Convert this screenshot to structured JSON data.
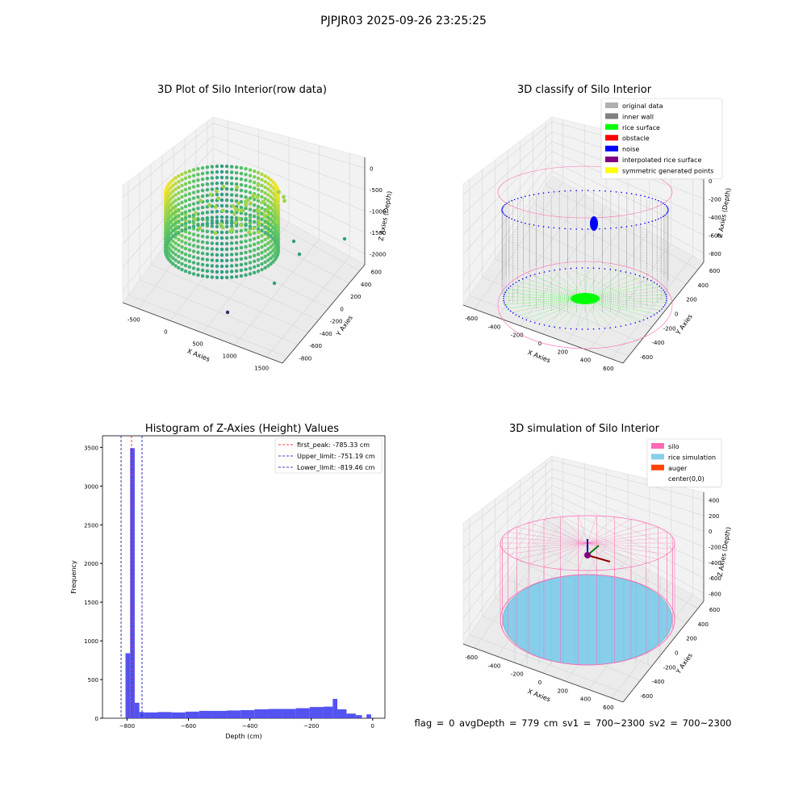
{
  "figure": {
    "suptitle": "PJPJR03 2025-09-26 23:25:25",
    "status_line": "flag = 0     avgDepth = 779 cm  sv1 = 700~2300  sv2 = 700~2300"
  },
  "colors": {
    "original": "#b0b0b0",
    "inner_wall": "#808080",
    "rice_surface": "#00ff00",
    "obstacle": "#ff0000",
    "noise": "#0000ff",
    "interpolated": "#800080",
    "symmetric": "#ffff00",
    "silo": "#ff69b4",
    "rice_sim": "#87ceeb",
    "auger": "#ff4500",
    "hist_bar": "#4040f0",
    "first_peak_line": "#ff0000",
    "limit_line": "#0000aa"
  },
  "chart_data": [
    {
      "type": "scatter",
      "title": "3D Plot of Silo Interior(row data)",
      "xlabel": "X Axies",
      "ylabel": "Y Axies",
      "zlabel": "Z Axies (Depth)",
      "xticks": [
        "-500",
        "0",
        "500",
        "1000",
        "1500"
      ],
      "yticks": [
        "-800",
        "-600",
        "-400",
        "-200",
        "0",
        "200",
        "400",
        "600"
      ],
      "zticks": [
        "0",
        "-500",
        "-1000",
        "-1500",
        "-2000"
      ],
      "colormap": "viridis",
      "outlier_points": [
        {
          "x": 900,
          "y": 400,
          "z": -1500
        },
        {
          "x": 600,
          "y": 200,
          "z": -1600
        },
        {
          "x": 700,
          "y": 300,
          "z": -1700
        },
        {
          "x": 800,
          "y": -100,
          "z": -2000
        },
        {
          "x": 500,
          "y": -600,
          "z": -2100
        }
      ]
    },
    {
      "type": "scatter",
      "title": "3D classify of Silo Interior",
      "xlabel": "X Axies",
      "ylabel": "Y Axies",
      "zlabel": "Z Axies (Depth)",
      "xticks": [
        "-600",
        "-400",
        "-200",
        "0",
        "200",
        "400",
        "600"
      ],
      "yticks": [
        "-600",
        "-400",
        "-200",
        "0",
        "200",
        "400",
        "600"
      ],
      "zticks": [
        "200",
        "0",
        "-200",
        "-400",
        "-600",
        "-800"
      ],
      "legend": [
        {
          "label": "original data",
          "color_key": "original"
        },
        {
          "label": "inner wall",
          "color_key": "inner_wall"
        },
        {
          "label": "rice surface",
          "color_key": "rice_surface"
        },
        {
          "label": "obstacle",
          "color_key": "obstacle"
        },
        {
          "label": "noise",
          "color_key": "noise"
        },
        {
          "label": "interpolated rice surface",
          "color_key": "interpolated"
        },
        {
          "label": "symmetric generated points",
          "color_key": "symmetric"
        }
      ],
      "legend_loc": "upper right"
    },
    {
      "type": "bar",
      "title": "Histogram of Z-Axies (Height) Values",
      "xlabel": "Depth (cm)",
      "ylabel": "Frequency",
      "xlim": [
        -880,
        40
      ],
      "ylim": [
        0,
        3650
      ],
      "xticks": [
        -800,
        -600,
        -400,
        -200,
        0
      ],
      "yticks": [
        0,
        500,
        1000,
        1500,
        2000,
        2500,
        3000,
        3500
      ],
      "bins": [
        {
          "x0": -805,
          "x1": -790,
          "count": 840
        },
        {
          "x0": -790,
          "x1": -775,
          "count": 3490
        },
        {
          "x0": -775,
          "x1": -760,
          "count": 200
        },
        {
          "x0": -760,
          "x1": -745,
          "count": 80
        },
        {
          "x0": -745,
          "x1": -700,
          "count": 75
        },
        {
          "x0": -700,
          "x1": -655,
          "count": 80
        },
        {
          "x0": -655,
          "x1": -610,
          "count": 75
        },
        {
          "x0": -610,
          "x1": -565,
          "count": 85
        },
        {
          "x0": -565,
          "x1": -520,
          "count": 95
        },
        {
          "x0": -520,
          "x1": -475,
          "count": 95
        },
        {
          "x0": -475,
          "x1": -430,
          "count": 100
        },
        {
          "x0": -430,
          "x1": -385,
          "count": 105
        },
        {
          "x0": -385,
          "x1": -340,
          "count": 115
        },
        {
          "x0": -340,
          "x1": -295,
          "count": 120
        },
        {
          "x0": -295,
          "x1": -250,
          "count": 120
        },
        {
          "x0": -250,
          "x1": -205,
          "count": 130
        },
        {
          "x0": -205,
          "x1": -160,
          "count": 145
        },
        {
          "x0": -160,
          "x1": -130,
          "count": 150
        },
        {
          "x0": -130,
          "x1": -115,
          "count": 250
        },
        {
          "x0": -115,
          "x1": -85,
          "count": 115
        },
        {
          "x0": -85,
          "x1": -55,
          "count": 60
        },
        {
          "x0": -55,
          "x1": -35,
          "count": 40
        },
        {
          "x0": -20,
          "x1": -5,
          "count": 50
        }
      ],
      "vlines": [
        {
          "label": "first_peak: -785.33 cm",
          "x": -785.33,
          "color_key": "first_peak_line"
        },
        {
          "label": "Upper_limit: -751.19 cm",
          "x": -751.19,
          "color_key": "limit_line"
        },
        {
          "label": "Lower_limit: -819.46 cm",
          "x": -819.46,
          "color_key": "limit_line"
        }
      ]
    },
    {
      "type": "scatter",
      "title": "3D simulation of Silo Interior",
      "xlabel": "X Axies",
      "ylabel": "Y Axies",
      "zlabel": "Z Axies (Depth)",
      "xticks": [
        "-600",
        "-400",
        "-200",
        "0",
        "200",
        "400",
        "600"
      ],
      "yticks": [
        "-600",
        "-400",
        "-200",
        "0",
        "200",
        "400",
        "600"
      ],
      "zticks": [
        "400",
        "200",
        "0",
        "-200",
        "-400",
        "-600",
        "-800"
      ],
      "legend": [
        {
          "label": "silo",
          "color_key": "silo"
        },
        {
          "label": "rice simulation",
          "color_key": "rice_sim"
        },
        {
          "label": "auger",
          "color_key": "auger"
        },
        {
          "label": "center(0,0)",
          "color_key": ""
        }
      ],
      "legend_loc": "upper right"
    }
  ]
}
